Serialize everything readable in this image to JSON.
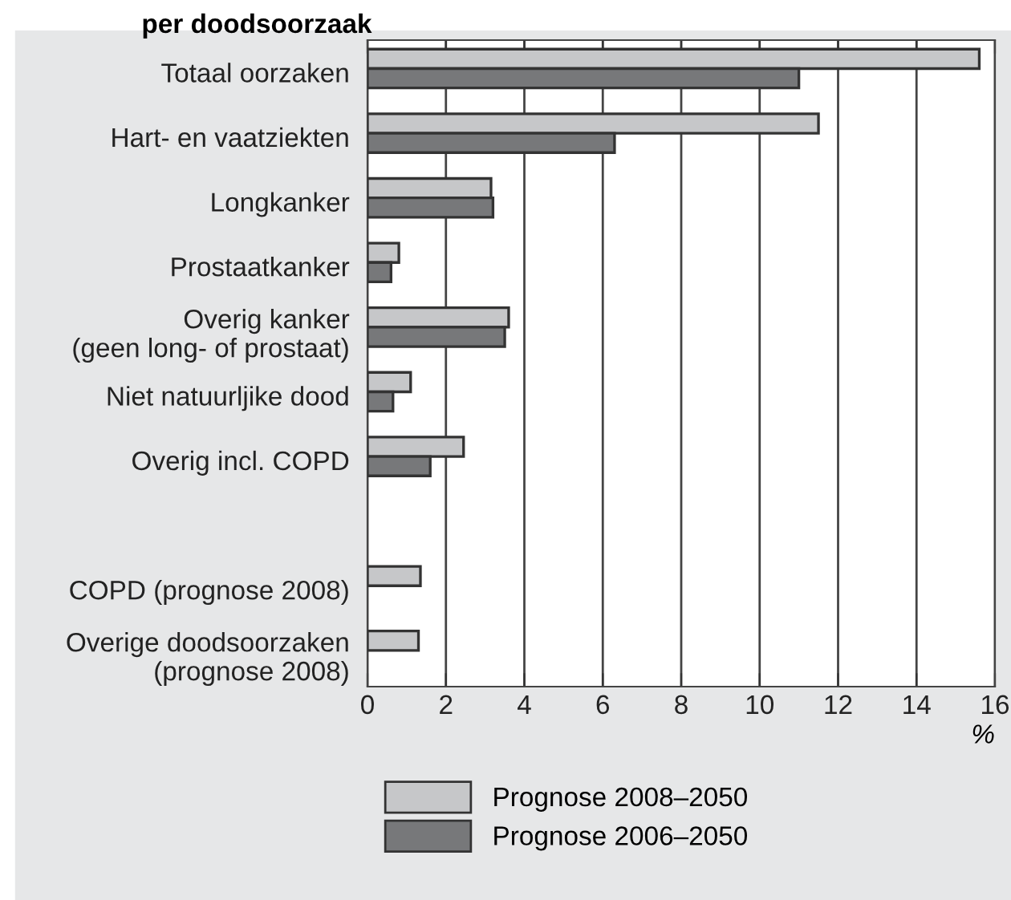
{
  "chart_data": {
    "type": "bar",
    "orientation": "horizontal",
    "title": "per doodsoorzaak",
    "xlabel": "%",
    "categories": [
      "Totaal oorzaken",
      "Hart- en vaatziekten",
      "Longkanker",
      "Prostaatkanker",
      "Overig kanker\n(geen long- of prostaat)",
      "Niet natuurljike dood",
      "Overig incl. COPD",
      null,
      "COPD (prognose 2008)",
      "Overige doodsoorzaken\n(prognose 2008)"
    ],
    "series": [
      {
        "name": "Prognose 2008–2050",
        "color": "#c6c7c9",
        "values": [
          15.6,
          11.5,
          3.15,
          0.8,
          3.6,
          1.1,
          2.45,
          null,
          1.35,
          1.3
        ]
      },
      {
        "name": "Prognose 2006–2050",
        "color": "#77787a",
        "values": [
          11.0,
          6.3,
          3.2,
          0.6,
          3.5,
          0.65,
          1.6,
          null,
          null,
          null
        ]
      }
    ],
    "xlim": [
      0,
      16
    ],
    "xticks": [
      0,
      2,
      4,
      6,
      8,
      10,
      12,
      14,
      16
    ],
    "grid": "x",
    "legend": "bottom left"
  }
}
